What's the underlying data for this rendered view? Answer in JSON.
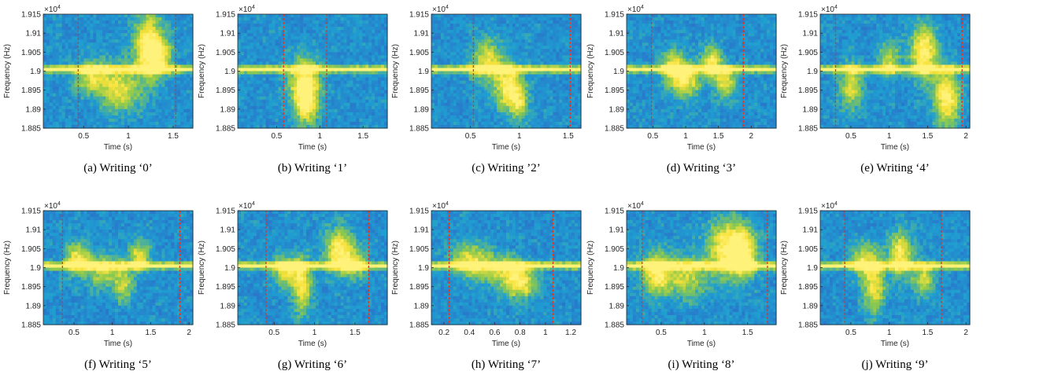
{
  "colors": {
    "background_low": "#2f5fc6",
    "background_mid": "#1f9fd1",
    "band_mid": "#8cc94e",
    "band_high": "#f7e23a",
    "band_peak": "#fff27a",
    "marker_line": "#d23a2a"
  },
  "chart_data": [
    {
      "type": "heatmap",
      "panel": "a",
      "caption": "(a) Writing ‘0’",
      "xlabel": "Time (s)",
      "ylabel": "Frequency (Hz)",
      "y_exponent": "×10",
      "y_exponent_power": "4",
      "ylim": [
        1.885,
        1.915
      ],
      "y_ticks": [
        "1.915",
        "1.91",
        "1.905",
        "1.9",
        "1.895",
        "1.89",
        "1.885"
      ],
      "xlim": [
        0.05,
        1.72
      ],
      "x_ticks": [
        0.5,
        1,
        1.5
      ],
      "x_tick_labels": [
        "0.5",
        "1",
        "1.5"
      ],
      "carrier": 1.9005,
      "markers": [
        0.44,
        1.53
      ],
      "blobs": [
        [
          0.6,
          1.8985,
          0.15,
          0.003,
          0.5
        ],
        [
          0.9,
          1.895,
          0.15,
          0.004,
          0.55
        ],
        [
          1.22,
          1.9065,
          0.12,
          0.006,
          0.75
        ],
        [
          1.35,
          1.904,
          0.1,
          0.003,
          0.5
        ]
      ]
    },
    {
      "type": "heatmap",
      "panel": "b",
      "caption": "(b) Writing ‘1’",
      "xlabel": "Time (s)",
      "ylabel": "Frequency (Hz)",
      "y_exponent": "×10",
      "y_exponent_power": "4",
      "ylim": [
        1.885,
        1.915
      ],
      "y_ticks": [
        "1.915",
        "1.91",
        "1.905",
        "1.9",
        "1.895",
        "1.89",
        "1.885"
      ],
      "xlim": [
        0.05,
        1.78
      ],
      "x_ticks": [
        0.5,
        1,
        1.5
      ],
      "x_tick_labels": [
        "0.5",
        "1",
        "1.5"
      ],
      "carrier": 1.9005,
      "markers": [
        0.58,
        1.08
      ],
      "blobs": [
        [
          0.82,
          1.896,
          0.12,
          0.005,
          0.8
        ],
        [
          0.85,
          1.891,
          0.08,
          0.004,
          0.4
        ]
      ]
    },
    {
      "type": "heatmap",
      "panel": "c",
      "caption": "(c) Writing ’2’",
      "xlabel": "Time (s)",
      "ylabel": "Frequency (Hz)",
      "y_exponent": "×10",
      "y_exponent_power": "4",
      "ylim": [
        1.885,
        1.915
      ],
      "y_ticks": [
        "1.915",
        "1.91",
        "1.905",
        "1.9",
        "1.895",
        "1.89",
        "1.885"
      ],
      "xlim": [
        0.1,
        1.63
      ],
      "x_ticks": [
        0.5,
        1,
        1.5
      ],
      "x_tick_labels": [
        "0.5",
        "1",
        "1.5"
      ],
      "carrier": 1.9005,
      "markers": [
        0.53,
        1.52
      ],
      "blobs": [
        [
          0.68,
          1.9025,
          0.12,
          0.004,
          0.55
        ],
        [
          0.9,
          1.8955,
          0.1,
          0.004,
          0.75
        ],
        [
          1.0,
          1.891,
          0.06,
          0.003,
          0.4
        ]
      ]
    },
    {
      "type": "heatmap",
      "panel": "d",
      "caption": "(d) Writing ‘3’",
      "xlabel": "Time (s)",
      "ylabel": "Frequency (Hz)",
      "y_exponent": "×10",
      "y_exponent_power": "4",
      "ylim": [
        1.885,
        1.915
      ],
      "y_ticks": [
        "1.915",
        "1.91",
        "1.905",
        "1.9",
        "1.895",
        "1.89",
        "1.885"
      ],
      "xlim": [
        0.1,
        2.38
      ],
      "x_ticks": [
        0.5,
        1,
        1.5,
        2
      ],
      "x_tick_labels": [
        "0.5",
        "1",
        "1.5",
        "2"
      ],
      "carrier": 1.9005,
      "markers": [
        0.48,
        1.88
      ],
      "blobs": [
        [
          0.8,
          1.9015,
          0.12,
          0.003,
          0.55
        ],
        [
          1.0,
          1.898,
          0.15,
          0.003,
          0.7
        ],
        [
          1.4,
          1.9025,
          0.1,
          0.003,
          0.6
        ],
        [
          1.6,
          1.897,
          0.12,
          0.003,
          0.55
        ]
      ]
    },
    {
      "type": "heatmap",
      "panel": "e",
      "caption": "(e) Writing ‘4’",
      "xlabel": "Time (s)",
      "ylabel": "Frequency (Hz)",
      "y_exponent": "×10",
      "y_exponent_power": "4",
      "ylim": [
        1.885,
        1.915
      ],
      "y_ticks": [
        "1.915",
        "1.91",
        "1.905",
        "1.9",
        "1.895",
        "1.89",
        "1.885"
      ],
      "xlim": [
        0.1,
        2.05
      ],
      "x_ticks": [
        0.5,
        1,
        1.5,
        2
      ],
      "x_tick_labels": [
        "0.5",
        "1",
        "1.5",
        "2"
      ],
      "carrier": 1.9005,
      "markers": [
        0.3,
        1.95
      ],
      "blobs": [
        [
          0.5,
          1.896,
          0.1,
          0.004,
          0.55
        ],
        [
          1.0,
          1.903,
          0.1,
          0.003,
          0.5
        ],
        [
          1.45,
          1.905,
          0.12,
          0.005,
          0.75
        ],
        [
          1.75,
          1.893,
          0.12,
          0.005,
          0.75
        ]
      ]
    },
    {
      "type": "heatmap",
      "panel": "f",
      "caption": "(f) Writing ‘5’",
      "xlabel": "Time (s)",
      "ylabel": "Frequency (Hz)",
      "y_exponent": "×10",
      "y_exponent_power": "4",
      "ylim": [
        1.885,
        1.915
      ],
      "y_ticks": [
        "1.915",
        "1.91",
        "1.905",
        "1.9",
        "1.895",
        "1.89",
        "1.885"
      ],
      "xlim": [
        0.1,
        2.05
      ],
      "x_ticks": [
        0.5,
        1,
        1.5,
        2
      ],
      "x_tick_labels": [
        "0.5",
        "1",
        "1.5",
        "2"
      ],
      "carrier": 1.9005,
      "markers": [
        0.35,
        1.88
      ],
      "blobs": [
        [
          0.55,
          1.9025,
          0.12,
          0.003,
          0.6
        ],
        [
          0.9,
          1.899,
          0.15,
          0.003,
          0.5
        ],
        [
          1.15,
          1.895,
          0.08,
          0.003,
          0.45
        ],
        [
          1.35,
          1.903,
          0.1,
          0.003,
          0.55
        ]
      ]
    },
    {
      "type": "heatmap",
      "panel": "g",
      "caption": "(g) Writing ‘6’",
      "xlabel": "Time (s)",
      "ylabel": "Frequency (Hz)",
      "y_exponent": "×10",
      "y_exponent_power": "4",
      "ylim": [
        1.885,
        1.915
      ],
      "y_ticks": [
        "1.915",
        "1.91",
        "1.905",
        "1.9",
        "1.895",
        "1.89",
        "1.885"
      ],
      "xlim": [
        0.05,
        1.9
      ],
      "x_ticks": [
        0.5,
        1,
        1.5
      ],
      "x_tick_labels": [
        "0.5",
        "1",
        "1.5"
      ],
      "carrier": 1.9005,
      "markers": [
        0.4,
        1.67
      ],
      "blobs": [
        [
          0.65,
          1.899,
          0.12,
          0.003,
          0.6
        ],
        [
          0.85,
          1.895,
          0.08,
          0.005,
          0.6
        ],
        [
          1.3,
          1.9045,
          0.12,
          0.004,
          0.7
        ],
        [
          1.5,
          1.901,
          0.1,
          0.003,
          0.45
        ]
      ]
    },
    {
      "type": "heatmap",
      "panel": "h",
      "caption": "(h) Writing ‘7’",
      "xlabel": "Time (s)",
      "ylabel": "Frequency (Hz)",
      "y_exponent": "×10",
      "y_exponent_power": "4",
      "ylim": [
        1.885,
        1.915
      ],
      "y_ticks": [
        "1.915",
        "1.91",
        "1.905",
        "1.9",
        "1.895",
        "1.89",
        "1.885"
      ],
      "xlim": [
        0.1,
        1.28
      ],
      "x_ticks": [
        0.2,
        0.4,
        0.6,
        0.8,
        1,
        1.2
      ],
      "x_tick_labels": [
        "0.2",
        "0.4",
        "0.6",
        "0.8",
        "1",
        "1.2"
      ],
      "carrier": 1.9005,
      "markers": [
        0.24,
        1.06
      ],
      "blobs": [
        [
          0.4,
          1.902,
          0.1,
          0.003,
          0.55
        ],
        [
          0.65,
          1.899,
          0.12,
          0.003,
          0.45
        ],
        [
          0.8,
          1.896,
          0.08,
          0.003,
          0.65
        ]
      ]
    },
    {
      "type": "heatmap",
      "panel": "i",
      "caption": "(i) Writing ‘8’",
      "xlabel": "Time (s)",
      "ylabel": "Frequency (Hz)",
      "y_exponent": "×10",
      "y_exponent_power": "4",
      "ylim": [
        1.885,
        1.915
      ],
      "y_ticks": [
        "1.915",
        "1.91",
        "1.905",
        "1.9",
        "1.895",
        "1.89",
        "1.885"
      ],
      "xlim": [
        0.1,
        1.83
      ],
      "x_ticks": [
        0.5,
        1,
        1.5
      ],
      "x_tick_labels": [
        "0.5",
        "1",
        "1.5"
      ],
      "carrier": 1.9005,
      "markers": [
        0.28,
        1.73
      ],
      "blobs": [
        [
          0.45,
          1.8985,
          0.12,
          0.004,
          0.7
        ],
        [
          0.8,
          1.8975,
          0.15,
          0.004,
          0.5
        ],
        [
          1.3,
          1.905,
          0.18,
          0.005,
          0.8
        ],
        [
          1.45,
          1.903,
          0.1,
          0.004,
          0.5
        ]
      ]
    },
    {
      "type": "heatmap",
      "panel": "j",
      "caption": "(j) Writing ‘9’",
      "xlabel": "Time (s)",
      "ylabel": "Frequency (Hz)",
      "y_exponent": "×10",
      "y_exponent_power": "4",
      "ylim": [
        1.885,
        1.915
      ],
      "y_ticks": [
        "1.915",
        "1.91",
        "1.905",
        "1.9",
        "1.895",
        "1.89",
        "1.885"
      ],
      "xlim": [
        0.1,
        2.05
      ],
      "x_ticks": [
        0.5,
        1,
        1.5,
        2
      ],
      "x_tick_labels": [
        "0.5",
        "1",
        "1.5",
        "2"
      ],
      "carrier": 1.9005,
      "markers": [
        0.42,
        1.68
      ],
      "blobs": [
        [
          0.65,
          1.902,
          0.12,
          0.003,
          0.5
        ],
        [
          0.8,
          1.8955,
          0.1,
          0.005,
          0.6
        ],
        [
          1.15,
          1.9035,
          0.1,
          0.004,
          0.7
        ],
        [
          1.45,
          1.897,
          0.1,
          0.003,
          0.5
        ]
      ]
    }
  ]
}
